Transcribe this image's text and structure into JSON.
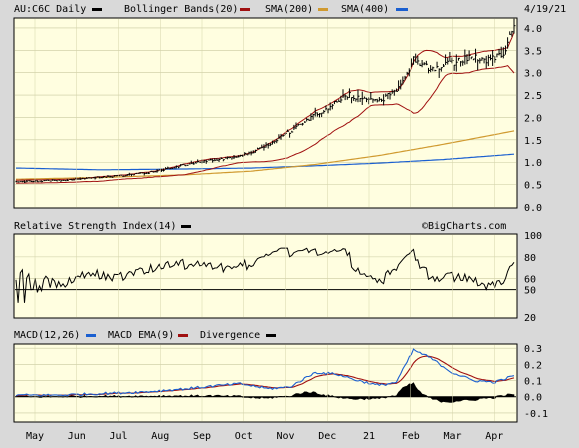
{
  "chart_data": [
    {
      "type": "line",
      "panel": "price",
      "ylim": [
        0,
        4.2
      ],
      "yticks": [
        "0.0",
        "0.5",
        "1.0",
        "1.5",
        "2.0",
        "2.5",
        "3.0",
        "3.5",
        "4.0"
      ],
      "date_label": "4/19/21",
      "watermark": "©BigCharts.com",
      "legend": [
        {
          "label": "AU:C6C Daily",
          "color": "#000000"
        },
        {
          "label": "Bollinger Bands(20)",
          "color": "#000000"
        },
        {
          "label": "SMA(200)",
          "color": "#a01010"
        },
        {
          "label": "SMA(400)",
          "color": "#d09a30"
        }
      ],
      "legend_extra_swatch_color": "#1a5fd0",
      "colors": {
        "price": "#000000",
        "bollinger": "#a01010",
        "sma200": "#d09a30",
        "sma400": "#1a5fd0"
      },
      "price_anchors": [
        [
          0,
          0.57
        ],
        [
          12,
          0.58
        ],
        [
          25,
          0.6
        ],
        [
          38,
          0.66
        ],
        [
          50,
          0.7
        ],
        [
          63,
          0.78
        ],
        [
          75,
          0.9
        ],
        [
          86,
          1.02
        ],
        [
          98,
          1.08
        ],
        [
          110,
          1.2
        ],
        [
          122,
          1.5
        ],
        [
          130,
          1.75
        ],
        [
          138,
          2.0
        ],
        [
          148,
          2.3
        ],
        [
          156,
          2.5
        ],
        [
          162,
          2.4
        ],
        [
          172,
          2.42
        ],
        [
          180,
          2.7
        ],
        [
          186,
          3.3
        ],
        [
          194,
          3.1
        ],
        [
          204,
          3.2
        ],
        [
          212,
          3.35
        ],
        [
          220,
          3.3
        ],
        [
          228,
          3.45
        ],
        [
          233,
          4.05
        ]
      ],
      "sma200_anchors": [
        [
          0,
          0.62
        ],
        [
          40,
          0.66
        ],
        [
          80,
          0.72
        ],
        [
          110,
          0.8
        ],
        [
          140,
          0.95
        ],
        [
          170,
          1.15
        ],
        [
          200,
          1.4
        ],
        [
          233,
          1.7
        ]
      ],
      "sma400_anchors": [
        [
          0,
          0.87
        ],
        [
          40,
          0.83
        ],
        [
          80,
          0.85
        ],
        [
          110,
          0.87
        ],
        [
          140,
          0.92
        ],
        [
          170,
          0.98
        ],
        [
          200,
          1.06
        ],
        [
          233,
          1.18
        ]
      ]
    },
    {
      "type": "line",
      "panel": "rsi",
      "title": "Relative Strength Index(14)",
      "ylim": [
        25,
        100
      ],
      "yticks": [
        "100",
        "80",
        "60",
        "50",
        "20"
      ],
      "reference_level": 50,
      "color": "#000000"
    },
    {
      "type": "line",
      "panel": "macd",
      "legend": [
        {
          "label": "MACD(12,26)",
          "color": "#1a5fd0"
        },
        {
          "label": "MACD EMA(9)",
          "color": "#a01010"
        },
        {
          "label": "Divergence",
          "color": "#000000"
        }
      ],
      "ylim": [
        -0.15,
        0.32
      ],
      "yticks": [
        "0.3",
        "0.2",
        "0.1",
        "0.0",
        "-0.1"
      ],
      "macd_anchors": [
        [
          0,
          0.01
        ],
        [
          20,
          0.01
        ],
        [
          40,
          0.02
        ],
        [
          60,
          0.03
        ],
        [
          80,
          0.05
        ],
        [
          95,
          0.07
        ],
        [
          105,
          0.08
        ],
        [
          118,
          0.05
        ],
        [
          128,
          0.06
        ],
        [
          140,
          0.15
        ],
        [
          150,
          0.14
        ],
        [
          160,
          0.1
        ],
        [
          170,
          0.07
        ],
        [
          178,
          0.09
        ],
        [
          186,
          0.29
        ],
        [
          194,
          0.24
        ],
        [
          204,
          0.15
        ],
        [
          214,
          0.1
        ],
        [
          224,
          0.09
        ],
        [
          233,
          0.13
        ]
      ]
    }
  ],
  "x_axis": {
    "labels": [
      "May",
      "Jun",
      "Jul",
      "Aug",
      "Sep",
      "Oct",
      "Nov",
      "Dec",
      "21",
      "Feb",
      "Mar",
      "Apr"
    ]
  }
}
